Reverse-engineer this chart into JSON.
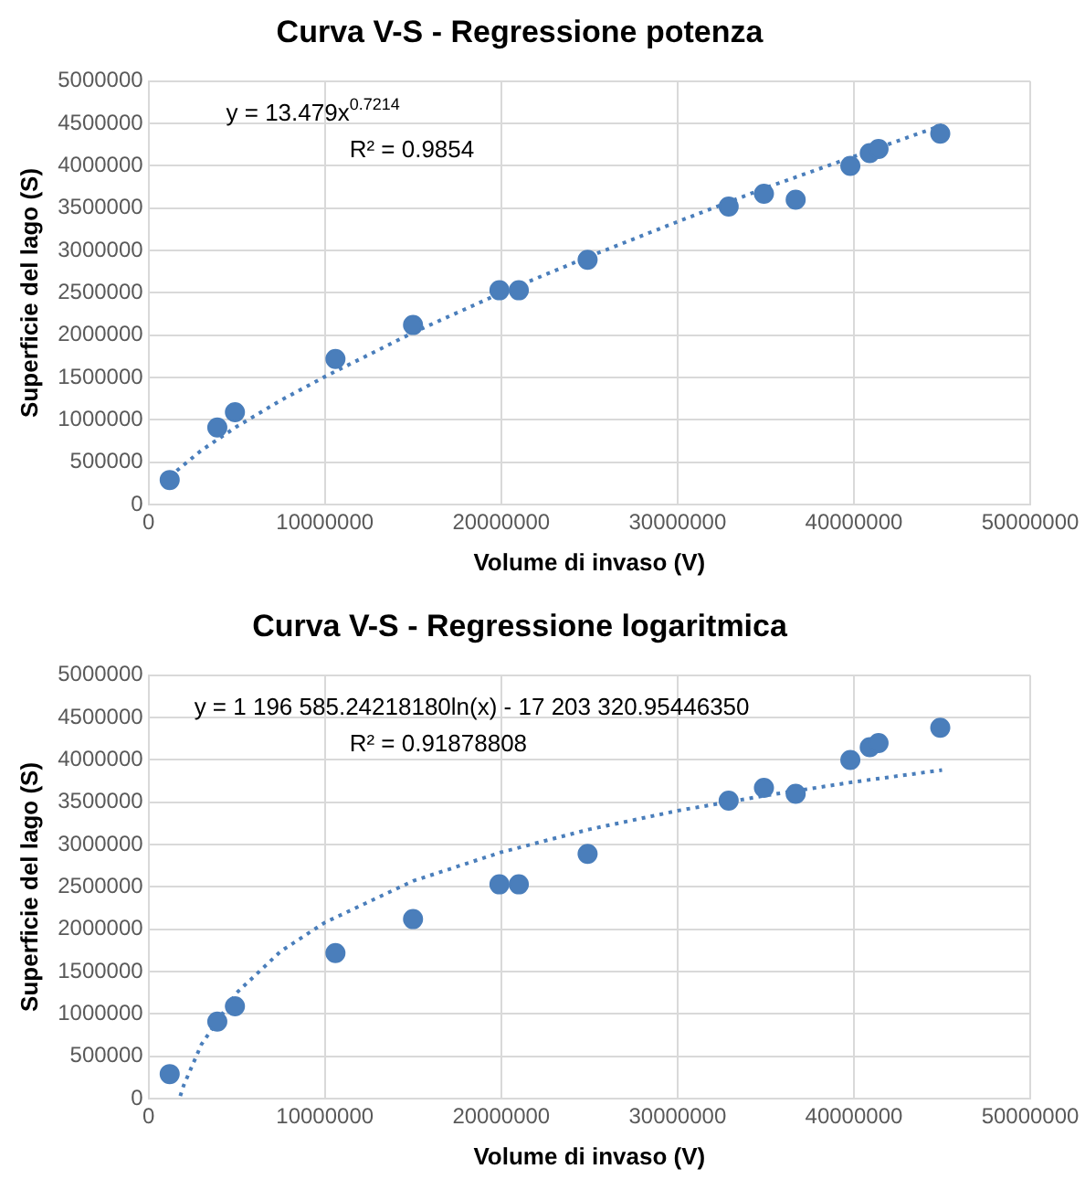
{
  "chart_data": [
    {
      "type": "scatter",
      "title": "Curva V-S - Regressione potenza",
      "xlabel": "Volume di invaso (V)",
      "ylabel": "Superficie del lago (S)",
      "xlim": [
        0,
        50000000
      ],
      "xticks": [
        0,
        10000000,
        20000000,
        30000000,
        40000000,
        50000000
      ],
      "ylim": [
        0,
        5000000
      ],
      "yticks": [
        0,
        500000,
        1000000,
        1500000,
        2000000,
        2500000,
        3000000,
        3500000,
        4000000,
        4500000,
        5000000
      ],
      "grid": true,
      "legend": false,
      "annotations": [
        "y = 13.479x$^{0.7214}$",
        "R² = 0.9854"
      ],
      "series": [
        {
          "type": "scatter",
          "marker": "circle",
          "color": "#4a7ebb",
          "x": [
            1200000,
            3900000,
            4900000,
            10600000,
            15000000,
            19900000,
            21000000,
            24900000,
            32900000,
            34900000,
            36700000,
            39800000,
            40900000,
            41400000,
            44900000
          ],
          "values": [
            290000,
            910000,
            1090000,
            1720000,
            2120000,
            2530000,
            2530000,
            2890000,
            3520000,
            3670000,
            3600000,
            4000000,
            4150000,
            4200000,
            4380000
          ]
        },
        {
          "type": "line",
          "marker": "none",
          "line_style": "dotted",
          "color": "#4a7ebb",
          "x": [
            1200000,
            3000000,
            5000000,
            7500000,
            10000000,
            15000000,
            20000000,
            25000000,
            30000000,
            35000000,
            40000000,
            45000000
          ],
          "values": [
            330000,
            640000,
            920000,
            1230000,
            1510000,
            2030000,
            2500000,
            2930000,
            3340000,
            3740000,
            4110000,
            4480000
          ]
        }
      ]
    },
    {
      "type": "scatter",
      "title": "Curva V-S - Regressione logaritmica",
      "xlabel": "Volume di invaso (V)",
      "ylabel": "Superficie del lago (S)",
      "xlim": [
        0,
        50000000
      ],
      "xticks": [
        0,
        10000000,
        20000000,
        30000000,
        40000000,
        50000000
      ],
      "ylim": [
        0,
        5000000
      ],
      "yticks": [
        0,
        500000,
        1000000,
        1500000,
        2000000,
        2500000,
        3000000,
        3500000,
        4000000,
        4500000,
        5000000
      ],
      "grid": true,
      "legend": false,
      "annotations": [
        "y = 1 196 585.24218180ln(x) - 17 203 320.95446350",
        "R² = 0.91878808"
      ],
      "series": [
        {
          "type": "scatter",
          "marker": "circle",
          "color": "#4a7ebb",
          "x": [
            1200000,
            3900000,
            4900000,
            10600000,
            15000000,
            19900000,
            21000000,
            24900000,
            32900000,
            34900000,
            36700000,
            39800000,
            40900000,
            41400000,
            44900000
          ],
          "values": [
            290000,
            910000,
            1090000,
            1720000,
            2120000,
            2530000,
            2530000,
            2890000,
            3520000,
            3670000,
            3600000,
            4000000,
            4150000,
            4200000,
            4380000
          ]
        },
        {
          "type": "line",
          "marker": "none",
          "line_style": "dotted",
          "color": "#4a7ebb",
          "x": [
            1800000,
            2000000,
            3000000,
            5000000,
            7500000,
            10000000,
            15000000,
            20000000,
            25000000,
            30000000,
            35000000,
            40000000,
            45000000
          ],
          "values": [
            30000,
            160000,
            640000,
            1250000,
            1740000,
            2080000,
            2570000,
            2910000,
            3180000,
            3400000,
            3580000,
            3740000,
            3880000
          ]
        }
      ]
    }
  ]
}
